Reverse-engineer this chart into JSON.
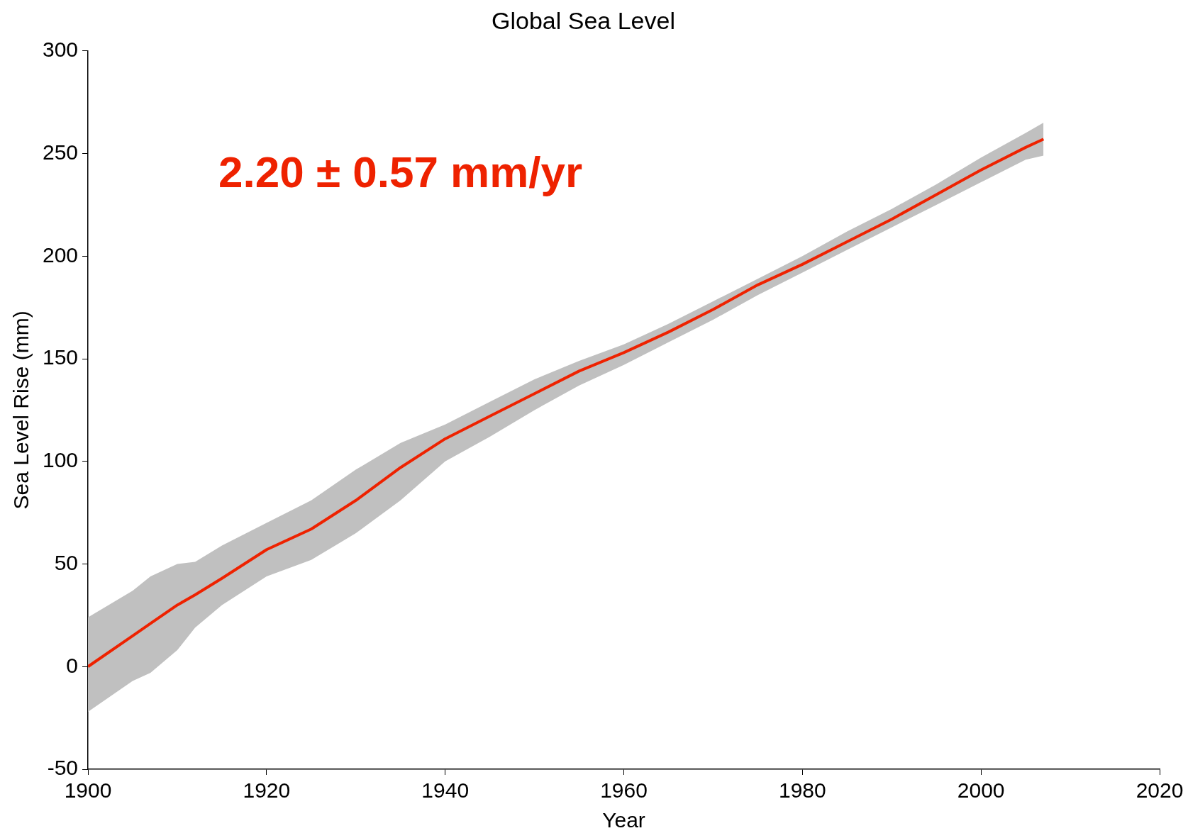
{
  "chart_data": {
    "type": "line",
    "title": "Global Sea Level",
    "xlabel": "Year",
    "ylabel": "Sea Level Rise (mm)",
    "annotations": [
      "2.20 ± 0.57 mm/yr"
    ],
    "x": [
      1900,
      1905,
      1907,
      1910,
      1912,
      1915,
      1920,
      1925,
      1930,
      1935,
      1940,
      1945,
      1950,
      1955,
      1960,
      1965,
      1970,
      1975,
      1980,
      1985,
      1990,
      1995,
      2000,
      2005,
      2007
    ],
    "series": [
      {
        "color": "#ee2200",
        "values": [
          0,
          15,
          21,
          30,
          35,
          43,
          57,
          67,
          81,
          97,
          111,
          122,
          133,
          144,
          153,
          163,
          174,
          186,
          196,
          207,
          218,
          230,
          242,
          253,
          257
        ],
        "lower": [
          -22,
          -7,
          -3,
          8,
          19,
          30,
          44,
          52,
          65,
          81,
          100,
          112,
          125,
          137,
          147,
          158,
          169,
          181,
          192,
          203,
          214,
          225,
          236,
          247,
          249
        ],
        "upper": [
          24,
          37,
          44,
          50,
          51,
          59,
          70,
          81,
          96,
          109,
          118,
          129,
          140,
          149,
          157,
          167,
          178,
          189,
          200,
          212,
          223,
          235,
          248,
          260,
          265
        ]
      }
    ],
    "xlim": [
      1900,
      2020
    ],
    "xticks": [
      1900,
      1920,
      1940,
      1960,
      1980,
      2000,
      2020
    ],
    "ylim": [
      -50,
      300
    ],
    "yticks": [
      -50,
      0,
      50,
      100,
      150,
      200,
      250,
      300
    ],
    "grid": false,
    "legend": false,
    "marker": "none",
    "line_style": "solid"
  }
}
